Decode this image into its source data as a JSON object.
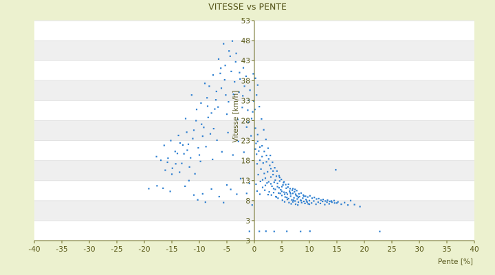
{
  "chart_data": {
    "type": "scatter",
    "title": "VITESSE vs PENTE",
    "xlabel": "Pente [%]",
    "ylabel": "Vitesse [km/h]",
    "xlim": [
      -40,
      40
    ],
    "ylim": [
      3,
      53
    ],
    "x_ticks": [
      "-40",
      "-35",
      "-30",
      "-25",
      "-20",
      "-15",
      "-10",
      "-5",
      "0",
      "5",
      "10",
      "15",
      "20",
      "25",
      "30",
      "35",
      "40"
    ],
    "y_ticks": [
      "3",
      "3",
      "8",
      "13",
      "18",
      "23",
      "28",
      "33",
      "38",
      "43",
      "48",
      "53"
    ],
    "grid": "horizontal banded",
    "legend": "none",
    "colors": {
      "points": "#2e7fd0",
      "axis": "#6b6b20",
      "band": "#efefef",
      "plot_bg": "#ffffff",
      "page_bg": "#ecf1cf"
    },
    "points": [
      [
        -19.2,
        11.0
      ],
      [
        -17.7,
        11.7
      ],
      [
        -16.6,
        11.1
      ],
      [
        -15.3,
        10.3
      ],
      [
        -12.6,
        11.6
      ],
      [
        -11.9,
        13.0
      ],
      [
        -11.0,
        9.4
      ],
      [
        -10.3,
        8.2
      ],
      [
        -9.4,
        9.7
      ],
      [
        -8.9,
        7.6
      ],
      [
        -7.8,
        10.9
      ],
      [
        -6.4,
        9.0
      ],
      [
        -5.6,
        7.5
      ],
      [
        -5.0,
        11.9
      ],
      [
        -4.3,
        10.8
      ],
      [
        -3.2,
        9.6
      ],
      [
        -2.5,
        13.5
      ],
      [
        -1.4,
        9.8
      ],
      [
        -0.9,
        12.3
      ],
      [
        -0.4,
        6.9
      ],
      [
        -17.8,
        19.0
      ],
      [
        -17.0,
        18.1
      ],
      [
        -16.4,
        21.8
      ],
      [
        -15.7,
        18.6
      ],
      [
        -15.2,
        23.0
      ],
      [
        -14.4,
        20.3
      ],
      [
        -13.8,
        24.3
      ],
      [
        -13.2,
        17.3
      ],
      [
        -12.5,
        28.5
      ],
      [
        -12.0,
        22.1
      ],
      [
        -11.4,
        34.4
      ],
      [
        -11.0,
        25.6
      ],
      [
        -10.5,
        30.8
      ],
      [
        -10.0,
        19.4
      ],
      [
        -9.6,
        27.1
      ],
      [
        -9.0,
        37.3
      ],
      [
        -8.5,
        31.6
      ],
      [
        -8.0,
        24.7
      ],
      [
        -7.5,
        39.4
      ],
      [
        -7.0,
        33.2
      ],
      [
        -6.5,
        43.4
      ],
      [
        -6.0,
        36.1
      ],
      [
        -5.6,
        47.2
      ],
      [
        -5.3,
        41.8
      ],
      [
        -5.0,
        29.6
      ],
      [
        -4.6,
        45.4
      ],
      [
        -4.2,
        40.3
      ],
      [
        -3.8,
        34.6
      ],
      [
        -3.4,
        42.7
      ],
      [
        -3.0,
        28.3
      ],
      [
        -2.6,
        38.4
      ],
      [
        -2.2,
        31.3
      ],
      [
        -1.8,
        36.6
      ],
      [
        -1.4,
        26.4
      ],
      [
        -1.0,
        33.1
      ],
      [
        -0.6,
        24.2
      ],
      [
        -16.2,
        15.6
      ],
      [
        -15.0,
        14.6
      ],
      [
        -14.3,
        17.2
      ],
      [
        -13.6,
        15.1
      ],
      [
        -12.8,
        19.7
      ],
      [
        -11.8,
        16.4
      ],
      [
        -10.8,
        14.7
      ],
      [
        -9.8,
        17.8
      ],
      [
        -8.8,
        21.5
      ],
      [
        -7.6,
        18.3
      ],
      [
        -6.8,
        23.1
      ],
      [
        -5.9,
        20.2
      ],
      [
        -4.8,
        25.0
      ],
      [
        -3.9,
        19.4
      ],
      [
        -2.9,
        22.8
      ],
      [
        -1.9,
        20.1
      ],
      [
        -1.1,
        27.6
      ],
      [
        -0.3,
        30.2
      ],
      [
        -9.7,
        32.4
      ],
      [
        -8.2,
        36.6
      ],
      [
        -7.2,
        30.9
      ],
      [
        -6.2,
        39.8
      ],
      [
        -5.2,
        34.4
      ],
      [
        -4.4,
        44.1
      ],
      [
        -3.6,
        37.7
      ],
      [
        -2.8,
        35.1
      ],
      [
        -2.0,
        41.2
      ],
      [
        -1.2,
        30.6
      ],
      [
        -0.5,
        28.5
      ],
      [
        -12.3,
        25.1
      ],
      [
        -13.0,
        21.9
      ],
      [
        -14.0,
        19.8
      ],
      [
        -11.2,
        23.5
      ],
      [
        -10.2,
        21.2
      ],
      [
        -9.2,
        26.3
      ],
      [
        -8.4,
        28.8
      ],
      [
        -7.4,
        26.0
      ],
      [
        -6.6,
        31.4
      ],
      [
        0.1,
        30.8
      ],
      [
        0.2,
        26.1
      ],
      [
        0.3,
        22.3
      ],
      [
        0.4,
        19.6
      ],
      [
        0.5,
        17.2
      ],
      [
        0.6,
        24.5
      ],
      [
        0.8,
        20.4
      ],
      [
        1.0,
        18.1
      ],
      [
        1.2,
        15.9
      ],
      [
        1.4,
        21.7
      ],
      [
        1.6,
        17.4
      ],
      [
        1.8,
        14.8
      ],
      [
        2.0,
        13.6
      ],
      [
        2.2,
        19.3
      ],
      [
        2.4,
        15.2
      ],
      [
        2.6,
        12.7
      ],
      [
        2.8,
        16.8
      ],
      [
        3.0,
        13.9
      ],
      [
        3.2,
        11.6
      ],
      [
        3.4,
        15.4
      ],
      [
        3.6,
        12.6
      ],
      [
        3.8,
        10.8
      ],
      [
        4.0,
        14.1
      ],
      [
        4.2,
        11.5
      ],
      [
        4.4,
        9.9
      ],
      [
        4.6,
        12.9
      ],
      [
        4.8,
        10.7
      ],
      [
        5.0,
        9.3
      ],
      [
        5.2,
        11.9
      ],
      [
        5.4,
        10.1
      ],
      [
        5.6,
        8.9
      ],
      [
        5.8,
        11.1
      ],
      [
        6.0,
        9.6
      ],
      [
        6.2,
        8.5
      ],
      [
        6.4,
        10.4
      ],
      [
        6.6,
        9.1
      ],
      [
        6.8,
        8.2
      ],
      [
        7.0,
        9.8
      ],
      [
        7.2,
        8.7
      ],
      [
        7.4,
        7.9
      ],
      [
        7.6,
        9.3
      ],
      [
        7.8,
        8.4
      ],
      [
        8.0,
        7.6
      ],
      [
        8.2,
        9.0
      ],
      [
        8.4,
        8.1
      ],
      [
        8.6,
        7.5
      ],
      [
        8.8,
        8.6
      ],
      [
        9.0,
        7.8
      ],
      [
        9.2,
        7.3
      ],
      [
        9.4,
        8.3
      ],
      [
        9.6,
        7.6
      ],
      [
        9.8,
        7.2
      ],
      [
        10.0,
        8.0
      ],
      [
        10.4,
        7.4
      ],
      [
        10.8,
        7.9
      ],
      [
        11.2,
        7.1
      ],
      [
        11.6,
        7.6
      ],
      [
        12.0,
        7.3
      ],
      [
        12.4,
        7.8
      ],
      [
        12.8,
        7.0
      ],
      [
        13.2,
        7.6
      ],
      [
        13.6,
        7.2
      ],
      [
        14.0,
        7.9
      ],
      [
        14.6,
        7.4
      ],
      [
        15.2,
        7.7
      ],
      [
        15.8,
        7.1
      ],
      [
        16.4,
        7.5
      ],
      [
        17.0,
        6.9
      ],
      [
        17.5,
        8.0
      ],
      [
        18.2,
        7.0
      ],
      [
        19.2,
        6.5
      ],
      [
        14.8,
        15.7
      ],
      [
        22.8,
        4.4
      ],
      [
        0.9,
        4.5
      ],
      [
        2.1,
        4.6
      ],
      [
        3.6,
        4.4
      ],
      [
        5.9,
        4.5
      ],
      [
        8.4,
        4.4
      ],
      [
        10.1,
        4.6
      ],
      [
        -0.9,
        4.5
      ],
      [
        0.3,
        12.1
      ],
      [
        0.7,
        14.5
      ],
      [
        1.1,
        12.8
      ],
      [
        1.5,
        11.3
      ],
      [
        1.9,
        10.6
      ],
      [
        2.3,
        12.4
      ],
      [
        2.7,
        10.2
      ],
      [
        3.1,
        9.4
      ],
      [
        3.5,
        11.0
      ],
      [
        3.9,
        9.0
      ],
      [
        4.3,
        8.6
      ],
      [
        4.7,
        9.8
      ],
      [
        5.1,
        8.1
      ],
      [
        5.5,
        7.7
      ],
      [
        5.9,
        8.8
      ],
      [
        6.3,
        7.5
      ],
      [
        6.7,
        7.2
      ],
      [
        7.1,
        8.1
      ],
      [
        7.5,
        7.1
      ],
      [
        7.9,
        6.9
      ],
      [
        0.4,
        34.4
      ],
      [
        0.6,
        36.9
      ],
      [
        0.2,
        38.6
      ],
      [
        -0.2,
        39.7
      ],
      [
        0.9,
        31.5
      ],
      [
        1.3,
        28.4
      ],
      [
        1.7,
        25.7
      ],
      [
        2.1,
        23.3
      ],
      [
        2.5,
        21.1
      ],
      [
        2.9,
        19.3
      ],
      [
        3.3,
        17.6
      ],
      [
        3.7,
        16.2
      ],
      [
        4.1,
        15.4
      ],
      [
        4.5,
        14.2
      ],
      [
        4.9,
        13.3
      ],
      [
        5.3,
        12.5
      ],
      [
        5.7,
        12.0
      ],
      [
        6.1,
        11.4
      ],
      [
        6.5,
        11.0
      ],
      [
        6.9,
        10.6
      ],
      [
        7.3,
        10.2
      ],
      [
        7.7,
        10.5
      ],
      [
        8.1,
        9.7
      ],
      [
        8.5,
        9.9
      ],
      [
        8.9,
        9.4
      ],
      [
        9.3,
        9.1
      ],
      [
        9.7,
        8.9
      ],
      [
        10.1,
        9.2
      ],
      [
        10.5,
        8.6
      ],
      [
        10.9,
        8.8
      ],
      [
        11.3,
        8.4
      ],
      [
        11.7,
        8.5
      ],
      [
        12.1,
        8.1
      ],
      [
        12.5,
        8.3
      ],
      [
        12.9,
        7.9
      ],
      [
        13.3,
        8.1
      ],
      [
        13.7,
        7.8
      ],
      [
        14.1,
        7.6
      ],
      [
        14.5,
        8.0
      ],
      [
        15.0,
        7.4
      ],
      [
        -15.8,
        17.6
      ],
      [
        -14.9,
        16.1
      ],
      [
        -13.5,
        22.4
      ],
      [
        -12.2,
        20.6
      ],
      [
        -11.6,
        18.7
      ],
      [
        -10.6,
        28.0
      ],
      [
        -9.4,
        24.1
      ],
      [
        -8.6,
        33.7
      ],
      [
        -7.8,
        29.9
      ],
      [
        -6.9,
        35.3
      ],
      [
        -6.1,
        41.1
      ],
      [
        -5.4,
        38.2
      ],
      [
        -4.7,
        32.7
      ],
      [
        -4.0,
        47.9
      ],
      [
        -3.3,
        44.8
      ],
      [
        -2.7,
        40.0
      ],
      [
        -2.1,
        34.2
      ],
      [
        -1.5,
        39.1
      ],
      [
        -0.8,
        35.6
      ],
      [
        -0.1,
        32.9
      ],
      [
        0.5,
        10.4
      ],
      [
        1.0,
        9.6
      ],
      [
        1.5,
        13.2
      ],
      [
        2.0,
        11.8
      ],
      [
        2.5,
        9.5
      ],
      [
        3.0,
        12.2
      ],
      [
        3.5,
        10.0
      ],
      [
        4.0,
        8.9
      ],
      [
        4.5,
        11.2
      ],
      [
        5.0,
        10.3
      ],
      [
        5.5,
        9.6
      ],
      [
        6.0,
        8.3
      ],
      [
        6.5,
        10.0
      ],
      [
        7.0,
        7.7
      ],
      [
        7.5,
        9.6
      ],
      [
        8.0,
        8.8
      ],
      [
        8.5,
        8.0
      ],
      [
        9.0,
        9.1
      ],
      [
        9.5,
        7.9
      ],
      [
        10.0,
        7.1
      ],
      [
        0.2,
        20.9
      ],
      [
        0.6,
        22.8
      ],
      [
        1.0,
        21.4
      ],
      [
        1.4,
        19.0
      ],
      [
        1.8,
        20.3
      ],
      [
        2.2,
        17.7
      ],
      [
        2.6,
        18.4
      ],
      [
        3.0,
        16.0
      ],
      [
        3.4,
        14.5
      ],
      [
        3.8,
        13.1
      ],
      [
        4.2,
        12.3
      ],
      [
        4.6,
        13.8
      ],
      [
        5.0,
        11.5
      ],
      [
        5.4,
        12.7
      ],
      [
        5.8,
        10.0
      ],
      [
        6.2,
        12.1
      ],
      [
        6.6,
        9.7
      ],
      [
        7.0,
        11.0
      ],
      [
        7.4,
        10.8
      ],
      [
        7.8,
        9.1
      ]
    ]
  }
}
